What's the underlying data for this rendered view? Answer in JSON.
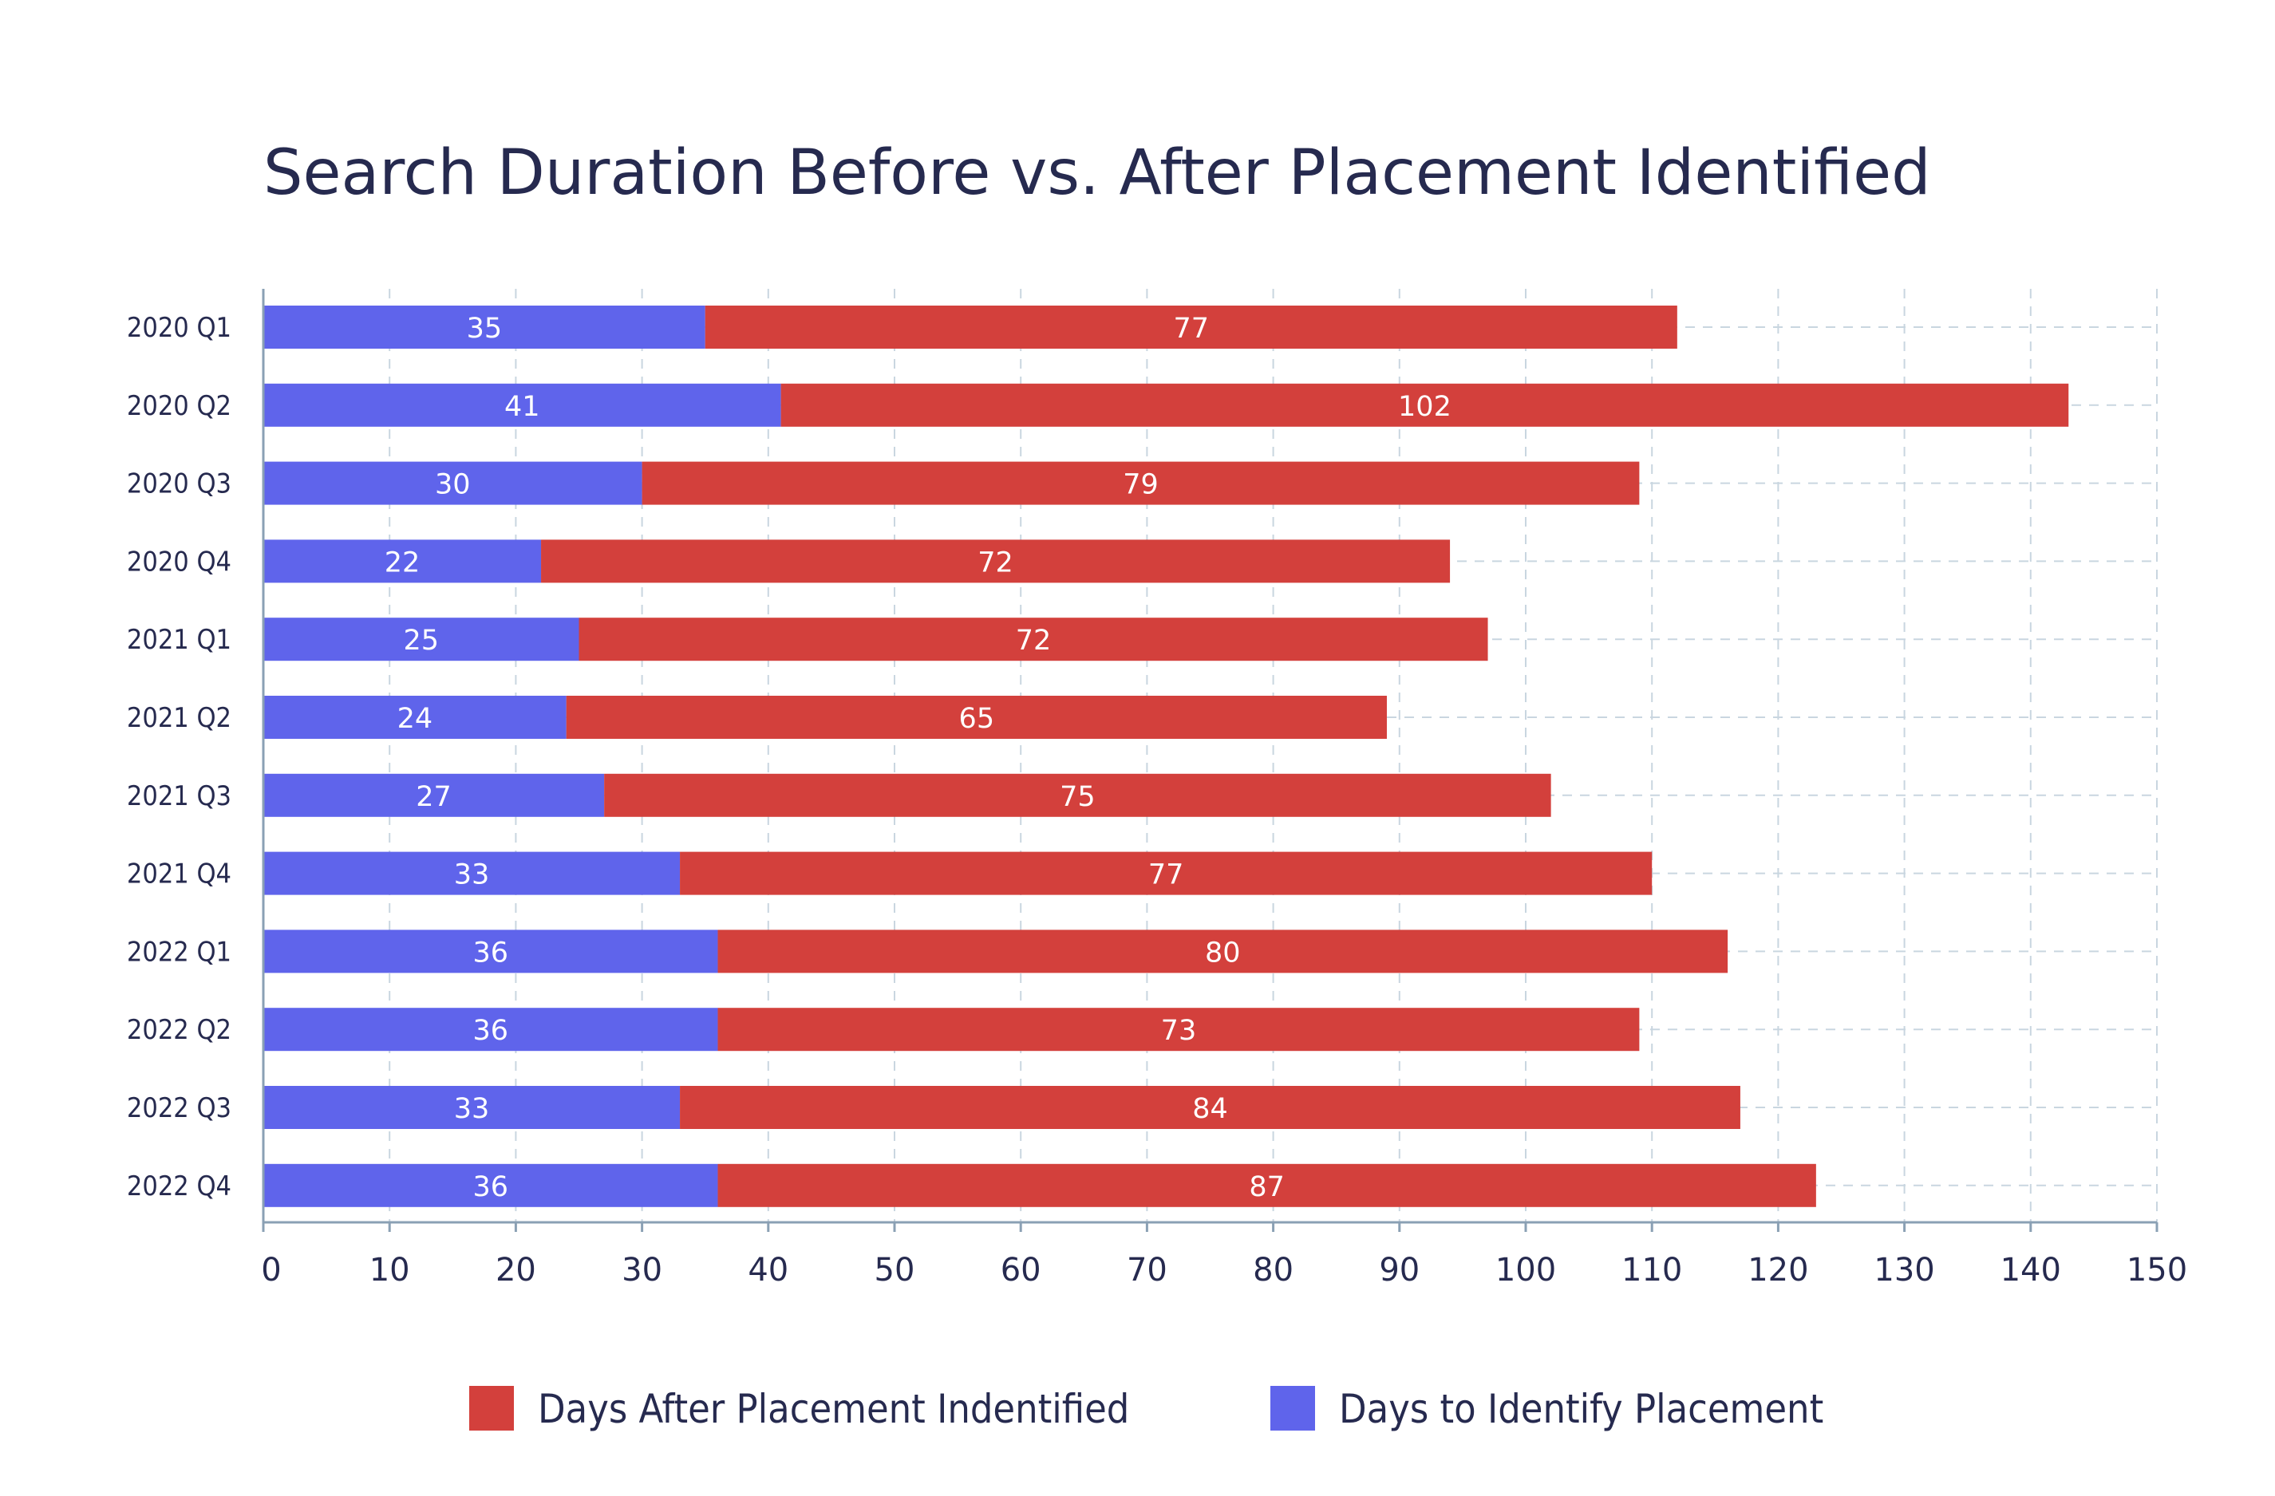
{
  "chart_data": {
    "type": "bar",
    "orientation": "horizontal",
    "stacked": true,
    "title": "Search Duration Before vs. After Placement Identified",
    "categories": [
      "2020 Q1",
      "2020 Q2",
      "2020 Q3",
      "2020 Q4",
      "2021 Q1",
      "2021 Q2",
      "2021 Q3",
      "2021 Q4",
      "2022 Q1",
      "2022 Q2",
      "2022 Q3",
      "2022 Q4"
    ],
    "series": [
      {
        "name": "Days to Identify Placement",
        "color": "#5f64eb",
        "values": [
          35,
          41,
          30,
          22,
          25,
          24,
          27,
          33,
          36,
          36,
          33,
          36
        ]
      },
      {
        "name": "Days After Placement Indentified",
        "color": "#d3403c",
        "values": [
          77,
          102,
          79,
          72,
          72,
          65,
          75,
          77,
          80,
          73,
          84,
          87
        ]
      }
    ],
    "xlim": [
      0,
      150
    ],
    "x_ticks": [
      0,
      10,
      20,
      30,
      40,
      50,
      60,
      70,
      80,
      90,
      100,
      110,
      120,
      130,
      140,
      150
    ],
    "grid": true,
    "legend": {
      "position": "bottom",
      "order": [
        "Days After Placement Indentified",
        "Days to Identify Placement"
      ]
    }
  }
}
